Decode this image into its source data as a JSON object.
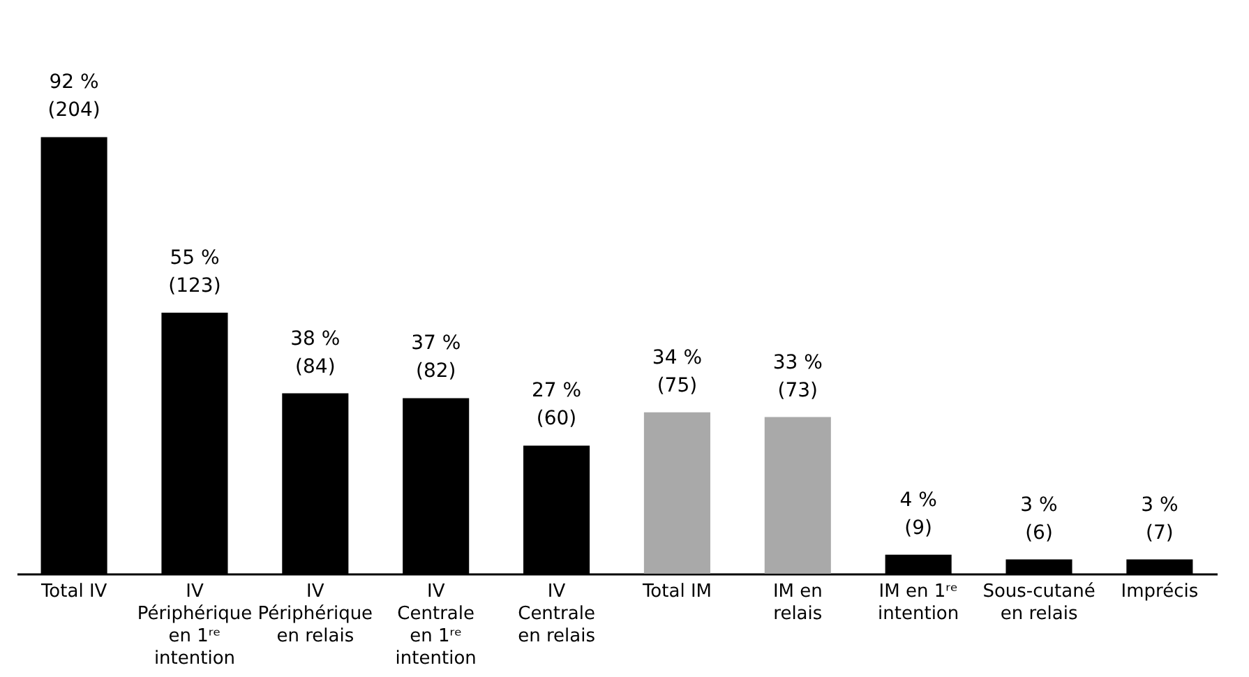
{
  "chart_data": {
    "type": "bar",
    "categories": [
      "Total IV",
      "IV Périphérique en 1ʳᵉ intention",
      "IV Périphérique en relais",
      "IV Centrale en 1ʳᵉ intention",
      "IV Centrale en relais",
      "Total IM",
      "IM en relais",
      "IM en 1ʳᵉ intention",
      "Sous-cutané en relais",
      "Imprécis"
    ],
    "values": [
      92,
      55,
      38,
      37,
      27,
      34,
      33,
      4,
      3,
      3
    ],
    "value_labels": [
      "92 %\n(204)",
      "55 %\n(123)",
      "38 %\n(84)",
      "37 %\n(82)",
      "27 %\n(60)",
      "34 %\n(75)",
      "33 %\n(73)",
      "4 %\n(9)",
      "3 %\n(6)",
      "3 %\n(7)"
    ],
    "colors": [
      "#000000",
      "#000000",
      "#000000",
      "#000000",
      "#000000",
      "#a9a9a9",
      "#a9a9a9",
      "#000000",
      "#000000",
      "#000000"
    ],
    "tick_labels": "x",
    "grid": false
  }
}
